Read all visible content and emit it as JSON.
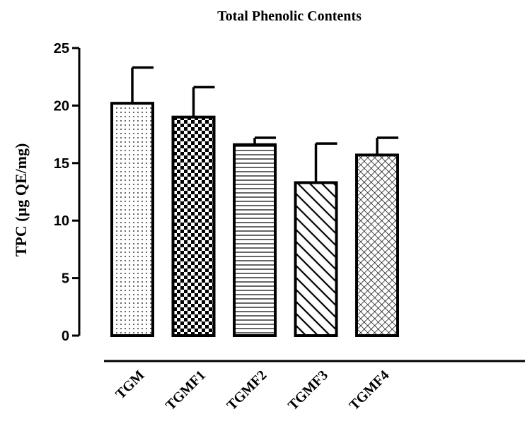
{
  "chart_data": {
    "type": "bar",
    "title": "Total Phenolic Contents",
    "xlabel": "",
    "ylabel": "TPC (µg QE/mg)",
    "ylim": [
      0,
      25
    ],
    "yticks": [
      0,
      5,
      10,
      15,
      20,
      25
    ],
    "grid": false,
    "categories": [
      "TGM",
      "TGMF1",
      "TGMF2",
      "TGMF3",
      "TGMF4"
    ],
    "values": [
      20.2,
      19.0,
      16.6,
      13.3,
      15.7
    ],
    "errors": [
      3.1,
      2.6,
      0.6,
      3.4,
      1.5
    ],
    "patterns": [
      "dots",
      "checker",
      "horizontal-lines",
      "diagonal-lines",
      "crosshatch"
    ]
  }
}
